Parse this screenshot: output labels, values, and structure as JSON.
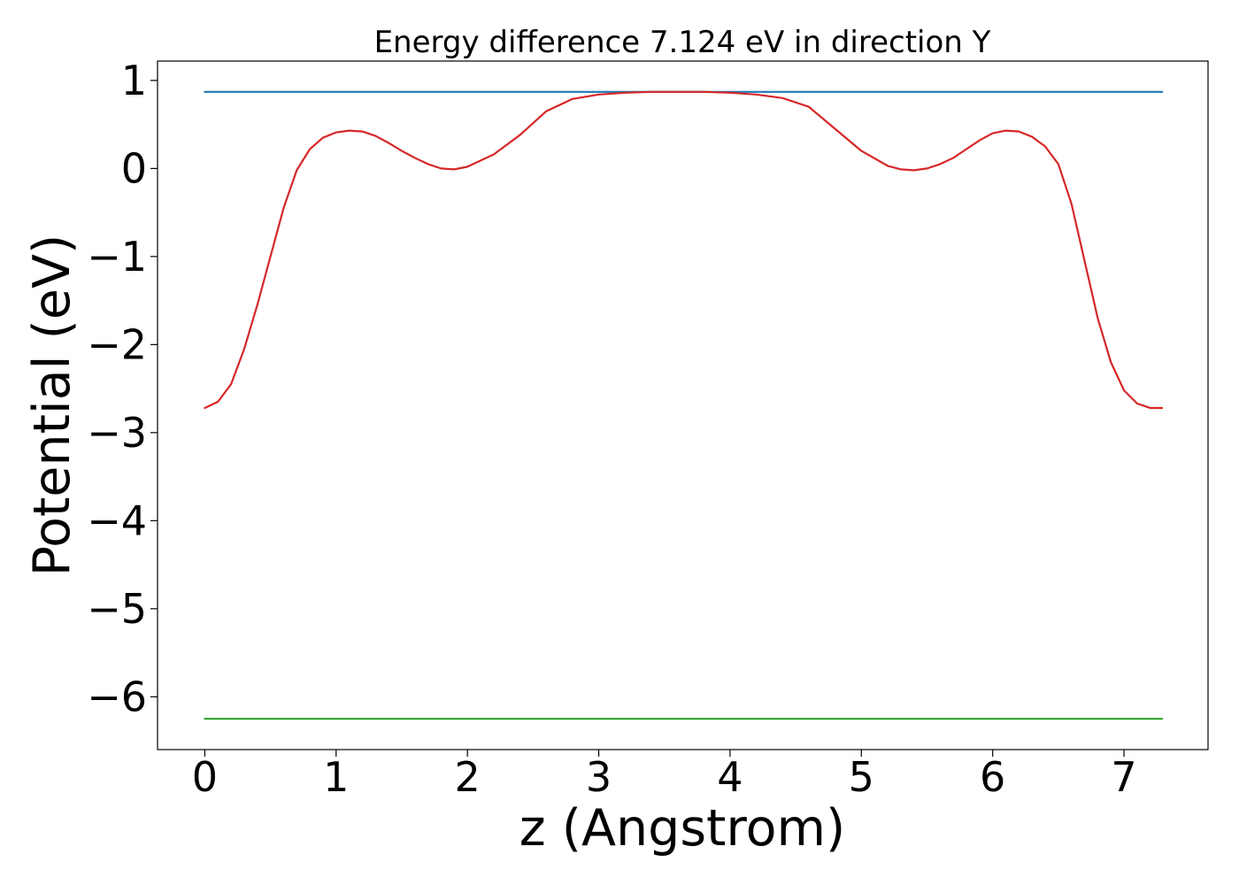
{
  "chart_data": {
    "type": "line",
    "title": "Energy difference 7.124 eV in direction Y",
    "xlabel": "z (Angstrom)",
    "ylabel": "Potential (eV)",
    "xlim": [
      -0.36,
      7.64
    ],
    "ylim": [
      -6.6,
      1.22
    ],
    "xticks": [
      0,
      1,
      2,
      3,
      4,
      5,
      6,
      7
    ],
    "yticks": [
      1,
      0,
      -1,
      -2,
      -3,
      -4,
      -5,
      -6
    ],
    "xtick_labels": [
      "0",
      "1",
      "2",
      "3",
      "4",
      "5",
      "6",
      "7"
    ],
    "ytick_labels": [
      "1",
      "0",
      "−1",
      "−2",
      "−3",
      "−4",
      "−5",
      "−6"
    ],
    "grid": false,
    "series": [
      {
        "color": "#1f77b4",
        "x": [
          0,
          7.29
        ],
        "y": [
          0.87,
          0.87
        ]
      },
      {
        "color": "#2ca02c",
        "x": [
          0,
          7.29
        ],
        "y": [
          -6.25,
          -6.25
        ]
      },
      {
        "color": "#d62728",
        "x": [
          0,
          0.1,
          0.2,
          0.3,
          0.4,
          0.5,
          0.6,
          0.7,
          0.8,
          0.9,
          1.0,
          1.1,
          1.2,
          1.3,
          1.4,
          1.5,
          1.6,
          1.7,
          1.8,
          1.9,
          2.0,
          2.2,
          2.4,
          2.6,
          2.8,
          3.0,
          3.2,
          3.4,
          3.6,
          3.8,
          4.0,
          4.2,
          4.4,
          4.6,
          4.8,
          5.0,
          5.2,
          5.3,
          5.4,
          5.5,
          5.6,
          5.7,
          5.8,
          5.9,
          6.0,
          6.1,
          6.2,
          6.3,
          6.4,
          6.5,
          6.6,
          6.7,
          6.8,
          6.9,
          7.0,
          7.1,
          7.2,
          7.29
        ],
        "y": [
          -2.72,
          -2.65,
          -2.45,
          -2.05,
          -1.55,
          -1.0,
          -0.45,
          -0.02,
          0.22,
          0.35,
          0.41,
          0.43,
          0.42,
          0.37,
          0.29,
          0.2,
          0.12,
          0.05,
          0.0,
          -0.01,
          0.02,
          0.16,
          0.38,
          0.65,
          0.79,
          0.84,
          0.86,
          0.87,
          0.87,
          0.87,
          0.86,
          0.84,
          0.8,
          0.7,
          0.45,
          0.2,
          0.03,
          -0.01,
          -0.02,
          0.0,
          0.05,
          0.12,
          0.22,
          0.32,
          0.4,
          0.43,
          0.42,
          0.36,
          0.25,
          0.05,
          -0.4,
          -1.05,
          -1.7,
          -2.2,
          -2.52,
          -2.67,
          -2.72,
          -2.72
        ]
      }
    ]
  }
}
